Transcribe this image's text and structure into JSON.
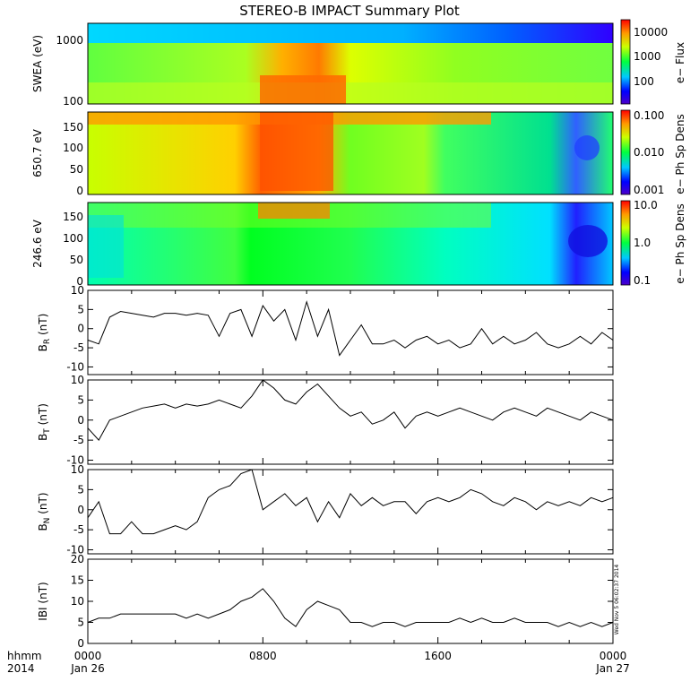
{
  "title": "STEREO-B IMPACT Summary Plot",
  "footer": {
    "hhmm": "hhmm",
    "year": "2014"
  },
  "x_axis": {
    "range": [
      0,
      24
    ],
    "ticks": [
      {
        "value": 0,
        "label": "0000",
        "sublabel": "Jan 26"
      },
      {
        "value": 8,
        "label": "0800",
        "sublabel": ""
      },
      {
        "value": 16,
        "label": "1600",
        "sublabel": ""
      },
      {
        "value": 24,
        "label": "0000",
        "sublabel": "Jan 27"
      }
    ]
  },
  "spectro_panels": [
    {
      "id": "swea",
      "ylabel": "SWEA (eV)",
      "yticks": [
        "1000",
        "100"
      ],
      "colorbar_label": "e− Flux",
      "colorbar_ticks": [
        "10000",
        "1000",
        "100"
      ]
    },
    {
      "id": "e650",
      "ylabel": "650.7 eV",
      "yticks": [
        "150",
        "100",
        "50",
        "0"
      ],
      "colorbar_label": "e− Ph Sp Dens",
      "colorbar_ticks": [
        "0.100",
        "0.010",
        "0.001"
      ]
    },
    {
      "id": "e246",
      "ylabel": "246.6 eV",
      "yticks": [
        "150",
        "100",
        "50",
        "0"
      ],
      "colorbar_label": "e− Ph Sp Dens",
      "colorbar_ticks": [
        "10.0",
        "1.0",
        "0.1"
      ]
    }
  ],
  "timestamp_stamp": "Wed Nov 5 06:02:37 2014",
  "chart_data": [
    {
      "type": "heatmap",
      "title": "STEREO-B IMPACT Summary Plot",
      "ylabel": "SWEA (eV)",
      "ylim": [
        90,
        2000
      ],
      "yscale": "log",
      "colorbar": "e− Flux",
      "zscale": "log",
      "zlim": [
        20,
        20000
      ]
    },
    {
      "type": "heatmap",
      "ylabel": "650.7 eV",
      "ylim": [
        -5,
        180
      ],
      "colorbar": "e− Ph Sp Dens",
      "zscale": "log",
      "zlim": [
        0.001,
        0.1
      ]
    },
    {
      "type": "heatmap",
      "ylabel": "246.6 eV",
      "ylim": [
        -5,
        180
      ],
      "colorbar": "e− Ph Sp Dens",
      "zscale": "log",
      "zlim": [
        0.1,
        10
      ]
    },
    {
      "type": "line",
      "ylabel": "B_R (nT)",
      "ylim": [
        -12,
        10
      ],
      "yticks": [
        10,
        5,
        0,
        -5,
        -10
      ],
      "x": [
        0,
        0.5,
        1,
        1.5,
        2,
        2.5,
        3,
        3.5,
        4,
        4.5,
        5,
        5.5,
        6,
        6.5,
        7,
        7.5,
        8,
        8.5,
        9,
        9.5,
        10,
        10.5,
        11,
        11.5,
        12,
        12.5,
        13,
        13.5,
        14,
        14.5,
        15,
        15.5,
        16,
        16.5,
        17,
        17.5,
        18,
        18.5,
        19,
        19.5,
        20,
        20.5,
        21,
        21.5,
        22,
        22.5,
        23,
        23.5,
        24
      ],
      "y": [
        -3,
        -4,
        3,
        4.5,
        4,
        3.5,
        3,
        4,
        4,
        3.5,
        4,
        3.5,
        -2,
        4,
        5,
        -2,
        6,
        2,
        5,
        -3,
        7,
        -2,
        5,
        -7,
        -3,
        1,
        -4,
        -4,
        -3,
        -5,
        -3,
        -2,
        -4,
        -3,
        -5,
        -4,
        0,
        -4,
        -2,
        -4,
        -3,
        -1,
        -4,
        -5,
        -4,
        -2,
        -4,
        -1,
        -3
      ]
    },
    {
      "type": "line",
      "ylabel": "B_T (nT)",
      "ylim": [
        -11,
        10
      ],
      "yticks": [
        10,
        5,
        0,
        -5,
        -10
      ],
      "x": [
        0,
        0.5,
        1,
        1.5,
        2,
        2.5,
        3,
        3.5,
        4,
        4.5,
        5,
        5.5,
        6,
        6.5,
        7,
        7.5,
        8,
        8.5,
        9,
        9.5,
        10,
        10.5,
        11,
        11.5,
        12,
        12.5,
        13,
        13.5,
        14,
        14.5,
        15,
        15.5,
        16,
        16.5,
        17,
        17.5,
        18,
        18.5,
        19,
        19.5,
        20,
        20.5,
        21,
        21.5,
        22,
        22.5,
        23,
        23.5,
        24
      ],
      "y": [
        -2,
        -5,
        0,
        1,
        2,
        3,
        3.5,
        4,
        3,
        4,
        3.5,
        4,
        5,
        4,
        3,
        6,
        10,
        8,
        5,
        4,
        7,
        9,
        6,
        3,
        1,
        2,
        -1,
        0,
        2,
        -2,
        1,
        2,
        1,
        2,
        3,
        2,
        1,
        0,
        2,
        3,
        2,
        1,
        3,
        2,
        1,
        0,
        2,
        1,
        0
      ]
    },
    {
      "type": "line",
      "ylabel": "B_N (nT)",
      "ylim": [
        -11,
        10
      ],
      "yticks": [
        10,
        5,
        0,
        -5,
        -10
      ],
      "x": [
        0,
        0.5,
        1,
        1.5,
        2,
        2.5,
        3,
        3.5,
        4,
        4.5,
        5,
        5.5,
        6,
        6.5,
        7,
        7.5,
        8,
        8.5,
        9,
        9.5,
        10,
        10.5,
        11,
        11.5,
        12,
        12.5,
        13,
        13.5,
        14,
        14.5,
        15,
        15.5,
        16,
        16.5,
        17,
        17.5,
        18,
        18.5,
        19,
        19.5,
        20,
        20.5,
        21,
        21.5,
        22,
        22.5,
        23,
        23.5,
        24
      ],
      "y": [
        -2,
        2,
        -6,
        -6,
        -3,
        -6,
        -6,
        -5,
        -4,
        -5,
        -3,
        3,
        5,
        6,
        9,
        10,
        0,
        2,
        4,
        1,
        3,
        -3,
        2,
        -2,
        4,
        1,
        3,
        1,
        2,
        2,
        -1,
        2,
        3,
        2,
        3,
        5,
        4,
        2,
        1,
        3,
        2,
        0,
        2,
        1,
        2,
        1,
        3,
        2,
        3
      ]
    },
    {
      "type": "line",
      "ylabel": "|B| (nT)",
      "ylim": [
        0,
        20
      ],
      "yticks": [
        20,
        15,
        10,
        5,
        0
      ],
      "x": [
        0,
        0.5,
        1,
        1.5,
        2,
        2.5,
        3,
        3.5,
        4,
        4.5,
        5,
        5.5,
        6,
        6.5,
        7,
        7.5,
        8,
        8.5,
        9,
        9.5,
        10,
        10.5,
        11,
        11.5,
        12,
        12.5,
        13,
        13.5,
        14,
        14.5,
        15,
        15.5,
        16,
        16.5,
        17,
        17.5,
        18,
        18.5,
        19,
        19.5,
        20,
        20.5,
        21,
        21.5,
        22,
        22.5,
        23,
        23.5,
        24
      ],
      "y": [
        5,
        6,
        6,
        7,
        7,
        7,
        7,
        7,
        7,
        6,
        7,
        6,
        7,
        8,
        10,
        11,
        13,
        10,
        6,
        4,
        8,
        10,
        9,
        8,
        5,
        5,
        4,
        5,
        5,
        4,
        5,
        5,
        5,
        5,
        6,
        5,
        6,
        5,
        5,
        6,
        5,
        5,
        5,
        4,
        5,
        4,
        5,
        4,
        5
      ]
    }
  ]
}
